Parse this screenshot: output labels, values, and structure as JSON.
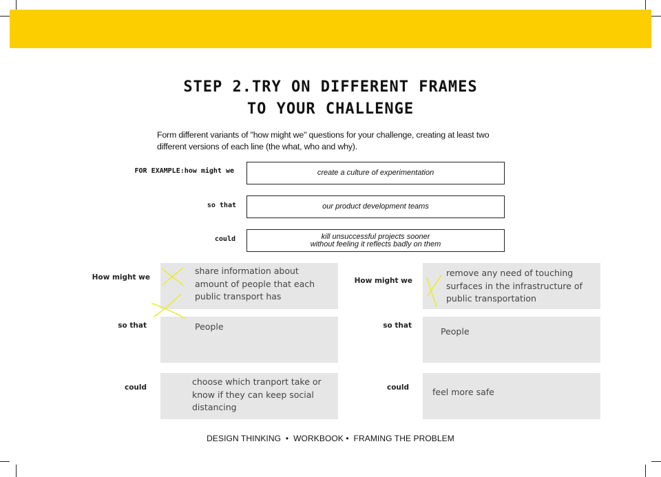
{
  "title": {
    "line1": "STEP 2.TRY ON DIFFERENT FRAMES",
    "line2": "TO YOUR CHALLENGE"
  },
  "intro": "Form different variants of \"how might we\" questions for your challenge, creating at least two different versions of each line (the what, who and why).",
  "example": {
    "label_hmw": "FOR EXAMPLE:how might we",
    "label_so_that": "so that",
    "label_could": "could",
    "hmw_text": "create a culture of experimentation",
    "so_that_text": "our product development teams",
    "could_line1": "kill unsuccessful projects sooner",
    "could_line2": "without feeling it reflects badly on them"
  },
  "left": {
    "label_hmw": "How might we",
    "label_so_that": "so that",
    "label_could": "could",
    "hmw_text": "share information about amount of people that each public transport has",
    "so_that_text": "People",
    "could_text": "choose which tranport take or know if they can keep social distancing"
  },
  "right": {
    "label_hmw": "How might we",
    "label_so_that": "so that",
    "label_could": "could",
    "hmw_text": "remove any need of touching surfaces in the infrastructure of public transportation",
    "so_that_text": "People",
    "could_text": "feel more safe"
  },
  "footer": "DESIGN THINKING  •  WORKBOOK •  FRAMING THE PROBLEM",
  "colors": {
    "banner": "#fcce00",
    "answer_box": "#e6e6e6",
    "highlighter": "#e8ec3a"
  }
}
